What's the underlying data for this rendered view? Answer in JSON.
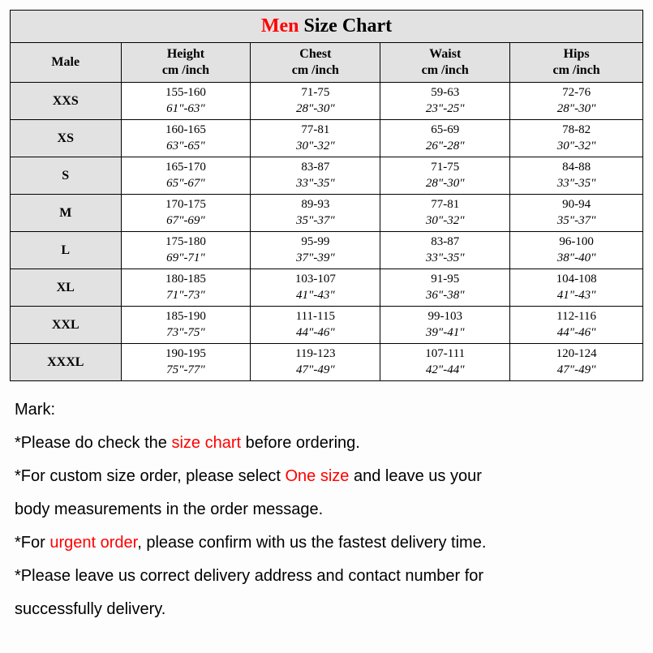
{
  "title": {
    "red": "Men",
    "rest": " Size Chart"
  },
  "columns": [
    "Male",
    {
      "line1": "Height",
      "line2": "cm /inch"
    },
    {
      "line1": "Chest",
      "line2": "cm /inch"
    },
    {
      "line1": "Waist",
      "line2": "cm /inch"
    },
    {
      "line1": "Hips",
      "line2": "cm /inch"
    }
  ],
  "col_widths": [
    "17.5%",
    "20.5%",
    "20.5%",
    "20.5%",
    "21%"
  ],
  "rows": [
    {
      "size": "XXS",
      "height_cm": "155-160",
      "height_in": "61\"-63\"",
      "chest_cm": "71-75",
      "chest_in": "28\"-30\"",
      "waist_cm": "59-63",
      "waist_in": "23\"-25\"",
      "hips_cm": "72-76",
      "hips_in": "28\"-30\""
    },
    {
      "size": "XS",
      "height_cm": "160-165",
      "height_in": "63\"-65\"",
      "chest_cm": "77-81",
      "chest_in": "30\"-32\"",
      "waist_cm": "65-69",
      "waist_in": "26\"-28\"",
      "hips_cm": "78-82",
      "hips_in": "30\"-32\""
    },
    {
      "size": "S",
      "height_cm": "165-170",
      "height_in": "65\"-67\"",
      "chest_cm": "83-87",
      "chest_in": "33\"-35\"",
      "waist_cm": "71-75",
      "waist_in": "28\"-30\"",
      "hips_cm": "84-88",
      "hips_in": "33\"-35\""
    },
    {
      "size": "M",
      "height_cm": "170-175",
      "height_in": "67\"-69\"",
      "chest_cm": "89-93",
      "chest_in": "35\"-37\"",
      "waist_cm": "77-81",
      "waist_in": "30\"-32\"",
      "hips_cm": "90-94",
      "hips_in": "35\"-37\""
    },
    {
      "size": "L",
      "height_cm": "175-180",
      "height_in": "69\"-71\"",
      "chest_cm": "95-99",
      "chest_in": "37\"-39\"",
      "waist_cm": "83-87",
      "waist_in": "33\"-35\"",
      "hips_cm": "96-100",
      "hips_in": "38\"-40\""
    },
    {
      "size": "XL",
      "height_cm": "180-185",
      "height_in": "71\"-73\"",
      "chest_cm": "103-107",
      "chest_in": "41\"-43\"",
      "waist_cm": "91-95",
      "waist_in": "36\"-38\"",
      "hips_cm": "104-108",
      "hips_in": "41\"-43\""
    },
    {
      "size": "XXL",
      "height_cm": "185-190",
      "height_in": "73\"-75\"",
      "chest_cm": "111-115",
      "chest_in": "44\"-46\"",
      "waist_cm": "99-103",
      "waist_in": "39\"-41\"",
      "hips_cm": "112-116",
      "hips_in": "44\"-46\""
    },
    {
      "size": "XXXL",
      "height_cm": "190-195",
      "height_in": "75\"-77\"",
      "chest_cm": "119-123",
      "chest_in": "47\"-49\"",
      "waist_cm": "107-111",
      "waist_in": "42\"-44\"",
      "hips_cm": "120-124",
      "hips_in": "47\"-49\""
    }
  ],
  "notes": {
    "title": "Mark:",
    "lines": [
      [
        {
          "t": "*Please do check the "
        },
        {
          "t": "size chart",
          "red": true
        },
        {
          "t": " before ordering."
        }
      ],
      [
        {
          "t": "*For custom size order, please select "
        },
        {
          "t": "One size",
          "red": true
        },
        {
          "t": " and leave us your"
        }
      ],
      [
        {
          "t": " body measurements in the order message."
        }
      ],
      [
        {
          "t": "*For "
        },
        {
          "t": "urgent order",
          "red": true
        },
        {
          "t": ", please confirm with us the fastest delivery time."
        }
      ],
      [
        {
          "t": "*Please leave us correct delivery address and contact number for"
        }
      ],
      [
        {
          "t": " successfully delivery."
        }
      ]
    ]
  },
  "colors": {
    "header_bg": "#e2e2e2",
    "body_bg": "#ffffff",
    "red": "#ff0000",
    "border": "#000000"
  }
}
